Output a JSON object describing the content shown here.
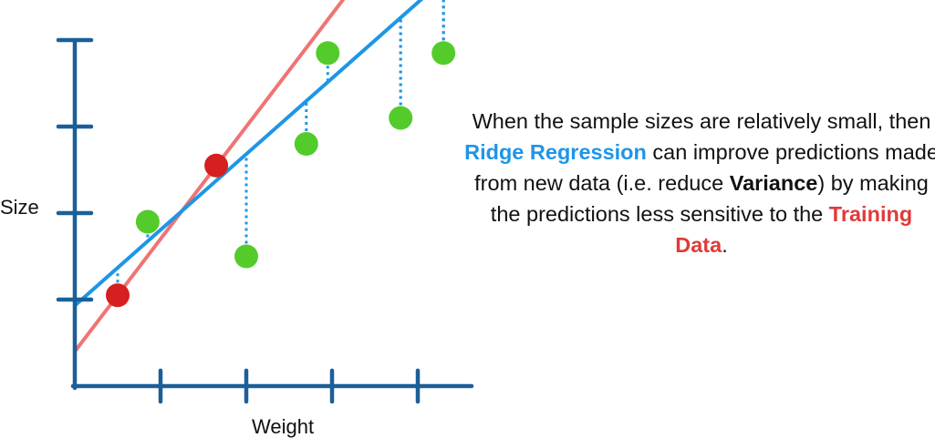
{
  "chart_data": {
    "type": "scatter",
    "xlabel": "Weight",
    "ylabel": "Size",
    "x_ticks": 4,
    "y_ticks": 4,
    "xlim": [
      0,
      5
    ],
    "ylim": [
      0,
      5
    ],
    "series": [
      {
        "role": "training-data",
        "color": "#d61f1f",
        "points": [
          {
            "x": 0.5,
            "y": 1.05
          },
          {
            "x": 1.65,
            "y": 2.55
          }
        ]
      },
      {
        "role": "new-data",
        "color": "#53cc2b",
        "points": [
          {
            "x": 0.85,
            "y": 1.9
          },
          {
            "x": 2.0,
            "y": 1.5
          },
          {
            "x": 2.7,
            "y": 2.8
          },
          {
            "x": 2.95,
            "y": 3.85
          },
          {
            "x": 3.8,
            "y": 3.1
          },
          {
            "x": 4.3,
            "y": 3.85
          }
        ]
      }
    ],
    "lines": [
      {
        "role": "least-squares",
        "color": "#ef7474",
        "slope": 1.3,
        "intercept": 0.4
      },
      {
        "role": "ridge-regression",
        "color": "#1e96e5",
        "slope": 0.876,
        "intercept": 0.93
      }
    ],
    "residual_color": "#1e96e5",
    "axis_color": "#1b5f99"
  },
  "caption": {
    "part1": "When the sample sizes are relatively small, then ",
    "ridge": "Ridge Regression",
    "part2": " can improve predictions made from new data (i.e. reduce ",
    "variance": "Variance",
    "part3": ") by making the predictions less sensitive to the ",
    "training": "Training Data",
    "part4": "."
  }
}
